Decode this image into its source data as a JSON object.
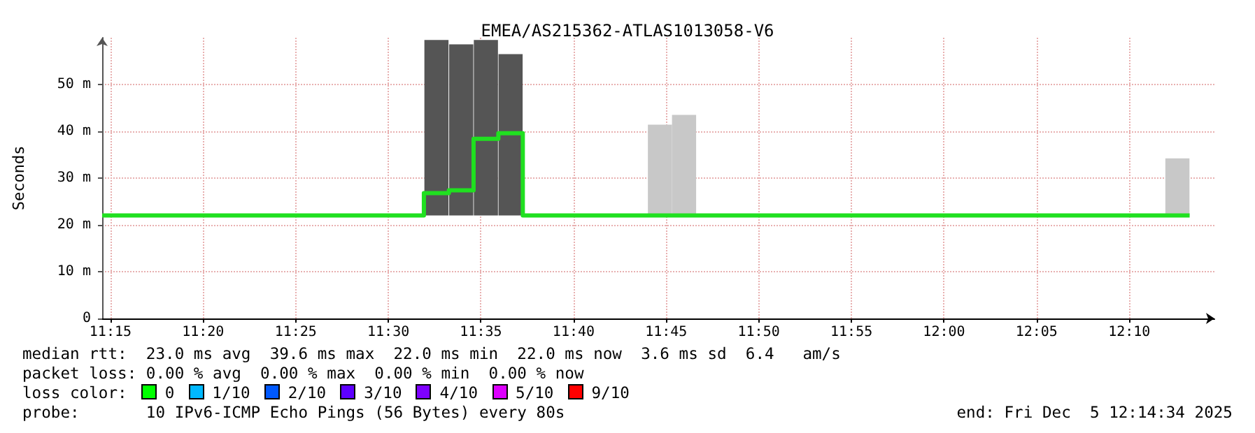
{
  "chart_data": {
    "type": "step",
    "title": "EMEA/AS215362-ATLAS1013058-V6",
    "ylabel": "Seconds",
    "xlim": [
      11.2425,
      12.2433
    ],
    "ylim": [
      0,
      60
    ],
    "xticks": [
      {
        "value": 11.25,
        "label": "11:15"
      },
      {
        "value": 11.3333,
        "label": "11:20"
      },
      {
        "value": 11.4167,
        "label": "11:25"
      },
      {
        "value": 11.5,
        "label": "11:30"
      },
      {
        "value": 11.5833,
        "label": "11:35"
      },
      {
        "value": 11.6667,
        "label": "11:40"
      },
      {
        "value": 11.75,
        "label": "11:45"
      },
      {
        "value": 11.8333,
        "label": "11:50"
      },
      {
        "value": 11.9167,
        "label": "11:55"
      },
      {
        "value": 12,
        "label": "12:00"
      },
      {
        "value": 12.0833,
        "label": "12:05"
      },
      {
        "value": 12.1667,
        "label": "12:10"
      }
    ],
    "yticks": [
      0,
      {
        "value": 10,
        "label": "10 m"
      },
      {
        "value": 20,
        "label": "20 m"
      },
      {
        "value": 30,
        "label": "30 m"
      },
      {
        "value": 40,
        "label": "40 m"
      },
      {
        "value": 50,
        "label": "50 m"
      }
    ],
    "grid": true,
    "series": [
      {
        "type": "bar",
        "base": [
          22,
          22,
          22,
          22,
          22,
          22,
          22
        ],
        "x": [
          11.5433,
          11.5656,
          11.5878,
          11.61,
          11.7444,
          11.7661,
          12.21
        ],
        "values": [
          37.5,
          36.6,
          37.5,
          34.5,
          19.4,
          21.5,
          12.2
        ],
        "colors": [
          "#555555",
          "#555555",
          "#555555",
          "#555555",
          "#c8c8c8",
          "#c8c8c8",
          "#c8c8c8"
        ]
      },
      {
        "color": "#20e020",
        "x": [
          11.2425,
          11.532,
          11.5545,
          11.5767,
          11.599,
          11.621,
          12.221
        ],
        "values": [
          22,
          26.8,
          27.4,
          38.4,
          39.6,
          22,
          22
        ]
      }
    ],
    "annotations": [
      "median rtt:  23.0 ms avg  39.6 ms max  22.0 ms min  22.0 ms now  3.6 ms sd  6.4   am/s",
      "packet loss: 0.00 % avg  0.00 % max  0.00 % min  0.00 % now",
      "loss color:",
      "0",
      "1/10",
      "2/10",
      "3/10",
      "4/10",
      "5/10",
      "9/10",
      "probe:       10 IPv6-ICMP Echo Pings (56 Bytes) every 80s",
      "end: Fri Dec  5 12:14:34 2025"
    ]
  }
}
